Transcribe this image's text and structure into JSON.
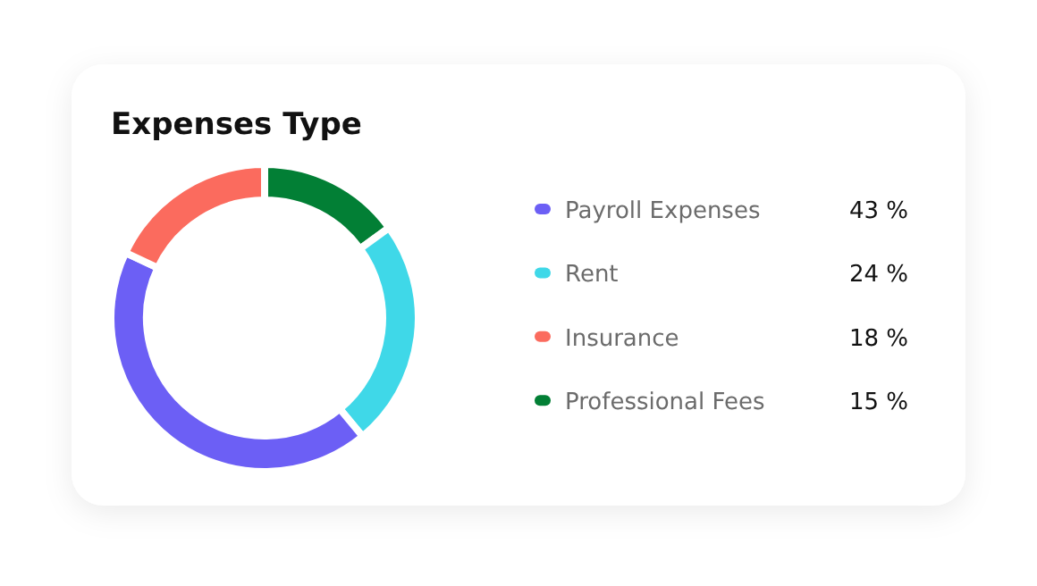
{
  "chart_data": {
    "type": "donut",
    "title": "Expenses Type",
    "categories": [
      "Payroll Expenses",
      "Rent",
      "Insurance",
      "Professional Fees"
    ],
    "values": [
      43,
      24,
      18,
      15
    ],
    "value_labels": [
      "43 %",
      "24 %",
      "18 %",
      "15 %"
    ],
    "colors": [
      "#6c5ff5",
      "#3fd8e8",
      "#fb6b5e",
      "#027f35"
    ],
    "legend": "right"
  }
}
